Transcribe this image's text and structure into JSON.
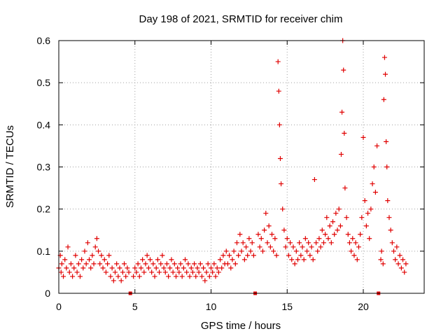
{
  "chart_data": {
    "type": "scatter",
    "title": "Day 198 of 2021, SRMTID for receiver chim",
    "xlabel": "GPS time / hours",
    "ylabel": "SRMTID / TECUs",
    "xlim": [
      0,
      24
    ],
    "ylim": [
      0,
      0.6
    ],
    "xticks": [
      0,
      5,
      10,
      15,
      20
    ],
    "yticks": [
      0,
      0.1,
      0.2,
      0.3,
      0.4,
      0.5,
      0.6
    ],
    "xtick_labels": [
      "0",
      "5",
      "10",
      "15",
      "20"
    ],
    "ytick_labels": [
      "0",
      "0.1",
      "0.2",
      "0.3",
      "0.4",
      "0.5",
      "0.6"
    ],
    "grid": true,
    "marker": "+",
    "color": "#e00000",
    "gap_markers_x": [
      4.7,
      12.9,
      21.0
    ],
    "series": [
      {
        "name": "SRMTID",
        "points": [
          [
            0.0,
            0.06
          ],
          [
            0.1,
            0.09
          ],
          [
            0.15,
            0.05
          ],
          [
            0.2,
            0.07
          ],
          [
            0.3,
            0.04
          ],
          [
            0.4,
            0.08
          ],
          [
            0.5,
            0.06
          ],
          [
            0.6,
            0.11
          ],
          [
            0.7,
            0.05
          ],
          [
            0.8,
            0.07
          ],
          [
            0.9,
            0.04
          ],
          [
            1.0,
            0.06
          ],
          [
            1.1,
            0.09
          ],
          [
            1.2,
            0.05
          ],
          [
            1.3,
            0.07
          ],
          [
            1.4,
            0.04
          ],
          [
            1.5,
            0.08
          ],
          [
            1.6,
            0.06
          ],
          [
            1.7,
            0.1
          ],
          [
            1.8,
            0.07
          ],
          [
            1.9,
            0.12
          ],
          [
            2.0,
            0.08
          ],
          [
            2.1,
            0.06
          ],
          [
            2.2,
            0.09
          ],
          [
            2.3,
            0.07
          ],
          [
            2.4,
            0.11
          ],
          [
            2.5,
            0.13
          ],
          [
            2.6,
            0.1
          ],
          [
            2.7,
            0.07
          ],
          [
            2.8,
            0.09
          ],
          [
            2.9,
            0.06
          ],
          [
            3.0,
            0.08
          ],
          [
            3.1,
            0.05
          ],
          [
            3.2,
            0.07
          ],
          [
            3.3,
            0.09
          ],
          [
            3.4,
            0.04
          ],
          [
            3.5,
            0.06
          ],
          [
            3.6,
            0.03
          ],
          [
            3.7,
            0.05
          ],
          [
            3.8,
            0.07
          ],
          [
            3.9,
            0.04
          ],
          [
            4.0,
            0.06
          ],
          [
            4.1,
            0.03
          ],
          [
            4.2,
            0.05
          ],
          [
            4.3,
            0.07
          ],
          [
            4.4,
            0.04
          ],
          [
            4.5,
            0.06
          ],
          [
            4.6,
            0.05
          ],
          [
            4.9,
            0.04
          ],
          [
            5.0,
            0.06
          ],
          [
            5.1,
            0.05
          ],
          [
            5.2,
            0.07
          ],
          [
            5.3,
            0.04
          ],
          [
            5.4,
            0.06
          ],
          [
            5.5,
            0.08
          ],
          [
            5.6,
            0.05
          ],
          [
            5.7,
            0.07
          ],
          [
            5.8,
            0.09
          ],
          [
            5.9,
            0.06
          ],
          [
            6.0,
            0.08
          ],
          [
            6.1,
            0.05
          ],
          [
            6.2,
            0.07
          ],
          [
            6.3,
            0.04
          ],
          [
            6.4,
            0.06
          ],
          [
            6.5,
            0.08
          ],
          [
            6.6,
            0.05
          ],
          [
            6.7,
            0.07
          ],
          [
            6.8,
            0.09
          ],
          [
            6.9,
            0.06
          ],
          [
            7.0,
            0.05
          ],
          [
            7.1,
            0.07
          ],
          [
            7.2,
            0.04
          ],
          [
            7.3,
            0.06
          ],
          [
            7.4,
            0.08
          ],
          [
            7.5,
            0.05
          ],
          [
            7.6,
            0.07
          ],
          [
            7.7,
            0.04
          ],
          [
            7.8,
            0.06
          ],
          [
            7.9,
            0.05
          ],
          [
            8.0,
            0.07
          ],
          [
            8.1,
            0.04
          ],
          [
            8.2,
            0.06
          ],
          [
            8.3,
            0.08
          ],
          [
            8.4,
            0.05
          ],
          [
            8.5,
            0.07
          ],
          [
            8.6,
            0.04
          ],
          [
            8.7,
            0.06
          ],
          [
            8.8,
            0.05
          ],
          [
            8.9,
            0.07
          ],
          [
            9.0,
            0.04
          ],
          [
            9.1,
            0.06
          ],
          [
            9.2,
            0.05
          ],
          [
            9.3,
            0.07
          ],
          [
            9.4,
            0.04
          ],
          [
            9.5,
            0.06
          ],
          [
            9.6,
            0.03
          ],
          [
            9.7,
            0.05
          ],
          [
            9.8,
            0.07
          ],
          [
            9.9,
            0.04
          ],
          [
            10.0,
            0.06
          ],
          [
            10.1,
            0.05
          ],
          [
            10.2,
            0.07
          ],
          [
            10.3,
            0.04
          ],
          [
            10.4,
            0.06
          ],
          [
            10.5,
            0.05
          ],
          [
            10.6,
            0.08
          ],
          [
            10.7,
            0.06
          ],
          [
            10.8,
            0.09
          ],
          [
            10.9,
            0.07
          ],
          [
            11.0,
            0.1
          ],
          [
            11.1,
            0.07
          ],
          [
            11.2,
            0.09
          ],
          [
            11.3,
            0.06
          ],
          [
            11.4,
            0.08
          ],
          [
            11.5,
            0.1
          ],
          [
            11.6,
            0.07
          ],
          [
            11.7,
            0.12
          ],
          [
            11.8,
            0.09
          ],
          [
            11.9,
            0.14
          ],
          [
            12.0,
            0.1
          ],
          [
            12.1,
            0.12
          ],
          [
            12.2,
            0.08
          ],
          [
            12.3,
            0.11
          ],
          [
            12.4,
            0.09
          ],
          [
            12.5,
            0.13
          ],
          [
            12.6,
            0.1
          ],
          [
            12.7,
            0.12
          ],
          [
            12.8,
            0.09
          ],
          [
            13.1,
            0.14
          ],
          [
            13.2,
            0.11
          ],
          [
            13.3,
            0.13
          ],
          [
            13.4,
            0.1
          ],
          [
            13.5,
            0.15
          ],
          [
            13.6,
            0.19
          ],
          [
            13.7,
            0.12
          ],
          [
            13.8,
            0.16
          ],
          [
            13.9,
            0.11
          ],
          [
            14.0,
            0.14
          ],
          [
            14.1,
            0.1
          ],
          [
            14.2,
            0.13
          ],
          [
            14.3,
            0.09
          ],
          [
            14.4,
            0.55
          ],
          [
            14.45,
            0.48
          ],
          [
            14.5,
            0.4
          ],
          [
            14.55,
            0.32
          ],
          [
            14.6,
            0.26
          ],
          [
            14.7,
            0.2
          ],
          [
            14.8,
            0.15
          ],
          [
            14.9,
            0.11
          ],
          [
            15.0,
            0.13
          ],
          [
            15.1,
            0.09
          ],
          [
            15.2,
            0.12
          ],
          [
            15.3,
            0.08
          ],
          [
            15.4,
            0.11
          ],
          [
            15.5,
            0.07
          ],
          [
            15.6,
            0.1
          ],
          [
            15.7,
            0.08
          ],
          [
            15.8,
            0.12
          ],
          [
            15.9,
            0.09
          ],
          [
            16.0,
            0.11
          ],
          [
            16.1,
            0.08
          ],
          [
            16.2,
            0.13
          ],
          [
            16.3,
            0.1
          ],
          [
            16.4,
            0.12
          ],
          [
            16.5,
            0.09
          ],
          [
            16.6,
            0.11
          ],
          [
            16.7,
            0.08
          ],
          [
            16.8,
            0.27
          ],
          [
            16.9,
            0.12
          ],
          [
            17.0,
            0.1
          ],
          [
            17.1,
            0.13
          ],
          [
            17.2,
            0.11
          ],
          [
            17.3,
            0.15
          ],
          [
            17.4,
            0.12
          ],
          [
            17.5,
            0.14
          ],
          [
            17.6,
            0.18
          ],
          [
            17.7,
            0.13
          ],
          [
            17.8,
            0.16
          ],
          [
            17.9,
            0.12
          ],
          [
            18.0,
            0.17
          ],
          [
            18.1,
            0.14
          ],
          [
            18.2,
            0.19
          ],
          [
            18.3,
            0.15
          ],
          [
            18.4,
            0.2
          ],
          [
            18.5,
            0.16
          ],
          [
            18.55,
            0.33
          ],
          [
            18.6,
            0.43
          ],
          [
            18.65,
            0.6
          ],
          [
            18.7,
            0.53
          ],
          [
            18.75,
            0.38
          ],
          [
            18.8,
            0.25
          ],
          [
            18.9,
            0.18
          ],
          [
            19.0,
            0.14
          ],
          [
            19.1,
            0.12
          ],
          [
            19.2,
            0.1
          ],
          [
            19.3,
            0.13
          ],
          [
            19.4,
            0.09
          ],
          [
            19.5,
            0.12
          ],
          [
            19.6,
            0.08
          ],
          [
            19.7,
            0.11
          ],
          [
            19.8,
            0.14
          ],
          [
            19.9,
            0.18
          ],
          [
            20.0,
            0.37
          ],
          [
            20.1,
            0.22
          ],
          [
            20.2,
            0.16
          ],
          [
            20.3,
            0.19
          ],
          [
            20.4,
            0.13
          ],
          [
            20.5,
            0.2
          ],
          [
            20.6,
            0.26
          ],
          [
            20.7,
            0.3
          ],
          [
            20.8,
            0.24
          ],
          [
            20.9,
            0.35
          ],
          [
            21.15,
            0.08
          ],
          [
            21.2,
            0.1
          ],
          [
            21.3,
            0.07
          ],
          [
            21.35,
            0.46
          ],
          [
            21.4,
            0.56
          ],
          [
            21.45,
            0.52
          ],
          [
            21.5,
            0.36
          ],
          [
            21.55,
            0.3
          ],
          [
            21.6,
            0.22
          ],
          [
            21.7,
            0.18
          ],
          [
            21.8,
            0.15
          ],
          [
            21.9,
            0.12
          ],
          [
            22.0,
            0.1
          ],
          [
            22.1,
            0.08
          ],
          [
            22.2,
            0.11
          ],
          [
            22.3,
            0.07
          ],
          [
            22.4,
            0.09
          ],
          [
            22.5,
            0.06
          ],
          [
            22.6,
            0.08
          ],
          [
            22.7,
            0.05
          ],
          [
            22.8,
            0.07
          ]
        ]
      }
    ]
  }
}
